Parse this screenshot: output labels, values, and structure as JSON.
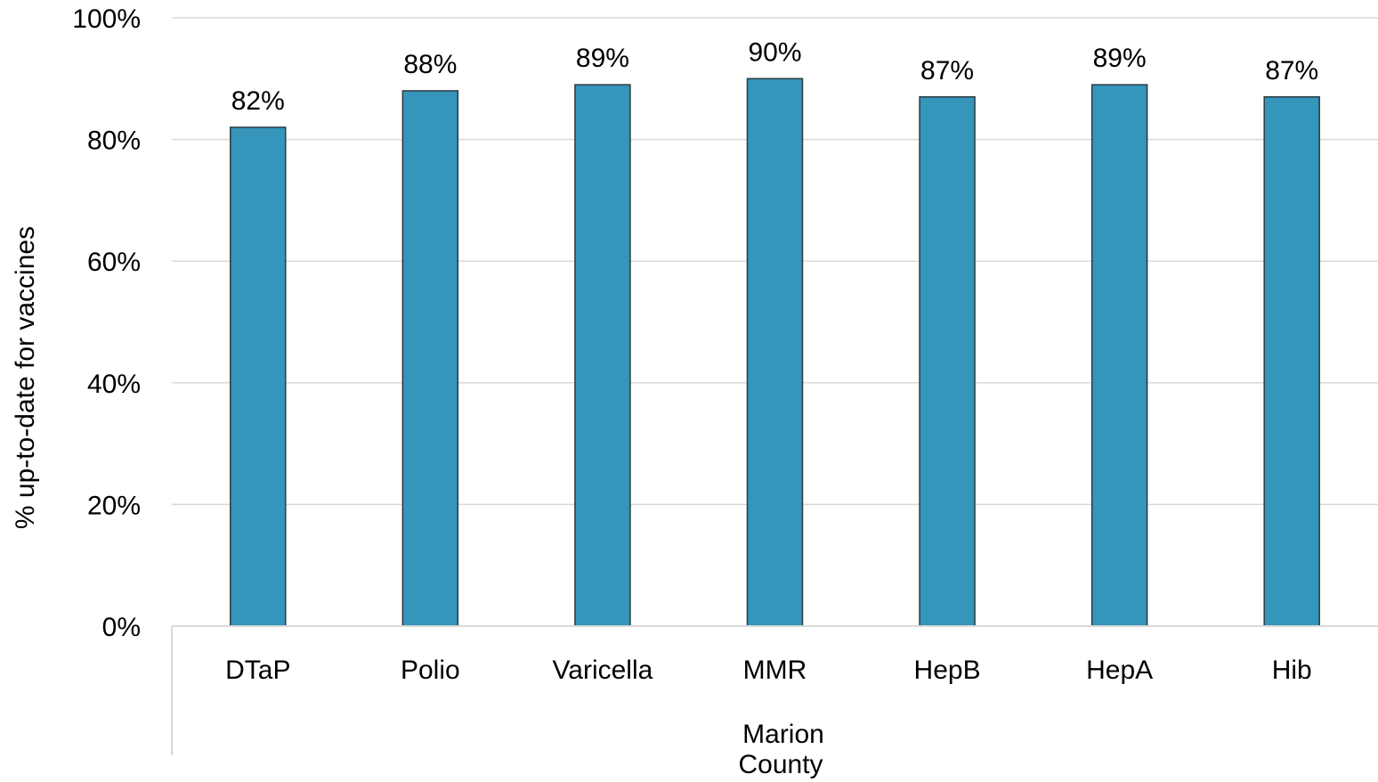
{
  "chart_data": {
    "type": "bar",
    "categories": [
      "DTaP",
      "Polio",
      "Varicella",
      "MMR",
      "HepB",
      "HepA",
      "Hib"
    ],
    "values": [
      82,
      88,
      89,
      90,
      87,
      89,
      87
    ],
    "data_labels": [
      "82%",
      "88%",
      "89%",
      "90%",
      "87%",
      "89%",
      "87%"
    ],
    "group_label_lines": [
      "Marion",
      "County"
    ],
    "ylabel": "% up-to-date for vaccines",
    "ylim": [
      0,
      100
    ],
    "yticks": [
      0,
      20,
      40,
      60,
      80,
      100
    ],
    "ytick_labels": [
      "0%",
      "20%",
      "40%",
      "60%",
      "80%",
      "100%"
    ],
    "grid": true,
    "legend": "none",
    "colors": {
      "bar_fill": "#3595BA",
      "bar_stroke": "#2B3A42",
      "grid": "#D9D9D9",
      "axis": "#D9D9D9"
    }
  }
}
